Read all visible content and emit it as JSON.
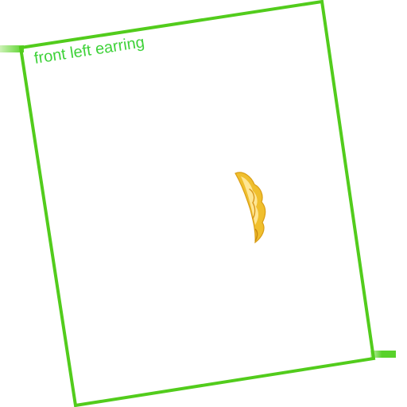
{
  "frame": {
    "label": "front left earring",
    "border_color": "#52cc1c",
    "label_color": "#3fd23a"
  },
  "item": {
    "name": "earring",
    "colors": [
      "#f2c22e",
      "#e6a61a",
      "#fff1b0"
    ]
  }
}
